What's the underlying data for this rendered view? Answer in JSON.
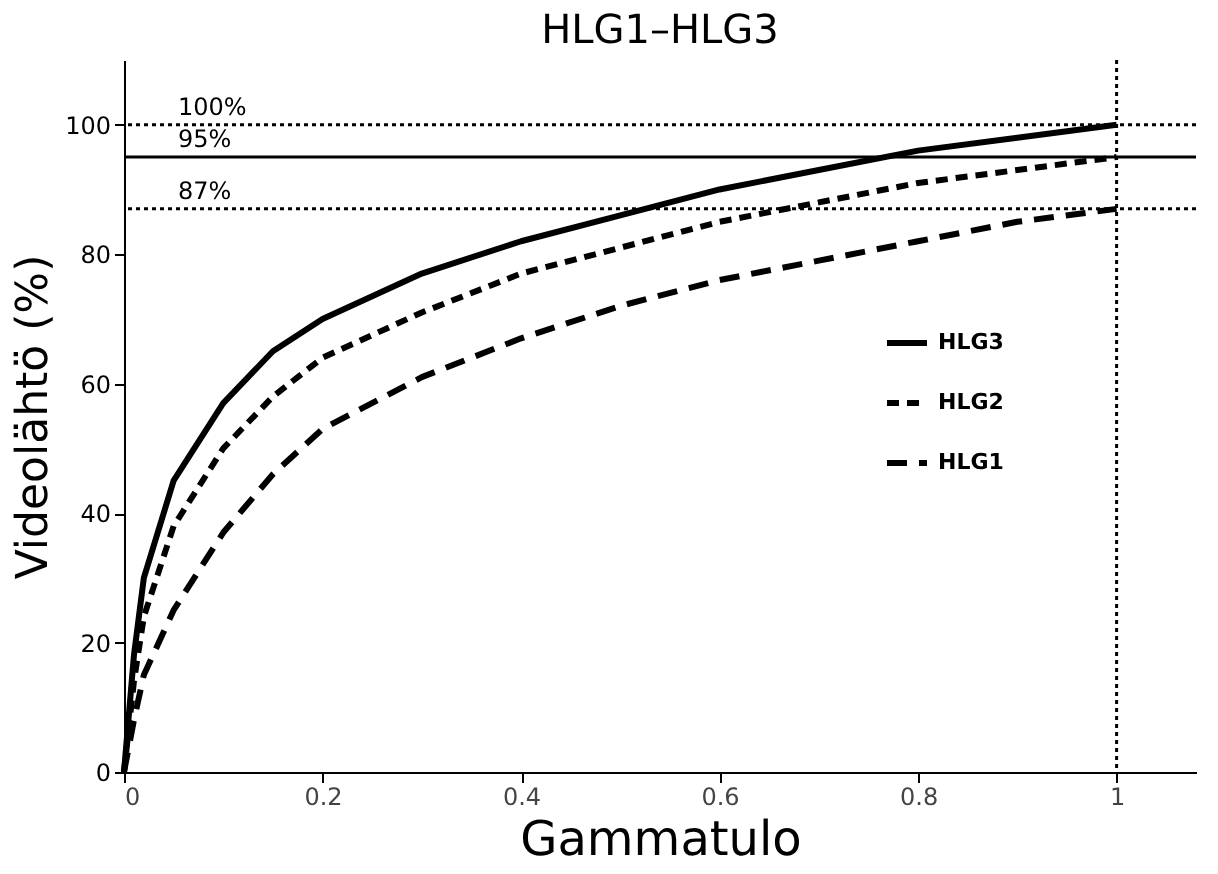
{
  "chart_data": {
    "type": "line",
    "title": "HLG1–HLG3",
    "xlabel": "Gammatulo",
    "ylabel": "Videolähtö (%)",
    "xlim": [
      0,
      1.08
    ],
    "ylim": [
      0,
      110
    ],
    "xticks": [
      0,
      0.2,
      0.4,
      0.6,
      0.8,
      1
    ],
    "yticks": [
      0,
      20,
      40,
      60,
      80,
      100
    ],
    "grid": false,
    "legend": "right",
    "marker": "none",
    "x": [
      0,
      0.01,
      0.02,
      0.05,
      0.1,
      0.15,
      0.2,
      0.3,
      0.4,
      0.5,
      0.6,
      0.7,
      0.8,
      0.9,
      1
    ],
    "series": [
      {
        "name": "HLG3",
        "color": "#000000",
        "line_style": "solid",
        "values": [
          0,
          18,
          30,
          45,
          57,
          65,
          70,
          77,
          82,
          86,
          90,
          93,
          96,
          98,
          100
        ]
      },
      {
        "name": "HLG2",
        "color": "#000000",
        "line_style": "dashed",
        "values": [
          0,
          14,
          24,
          38,
          50,
          58,
          64,
          71,
          77,
          81,
          85,
          88,
          91,
          93,
          95
        ]
      },
      {
        "name": "HLG1",
        "color": "#000000",
        "line_style": "dashed",
        "values": [
          0,
          8,
          15,
          25,
          37,
          46,
          53,
          61,
          67,
          72,
          76,
          79,
          82,
          85,
          87
        ]
      }
    ],
    "ref_lines": [
      {
        "axis": "y",
        "value": 100,
        "label": "100%",
        "line_style": "dotted"
      },
      {
        "axis": "y",
        "value": 95,
        "label": "95%",
        "line_style": "solid"
      },
      {
        "axis": "y",
        "value": 87,
        "label": "87%",
        "line_style": "dotted"
      },
      {
        "axis": "x",
        "value": 1,
        "label": null,
        "line_style": "dotted"
      }
    ]
  }
}
